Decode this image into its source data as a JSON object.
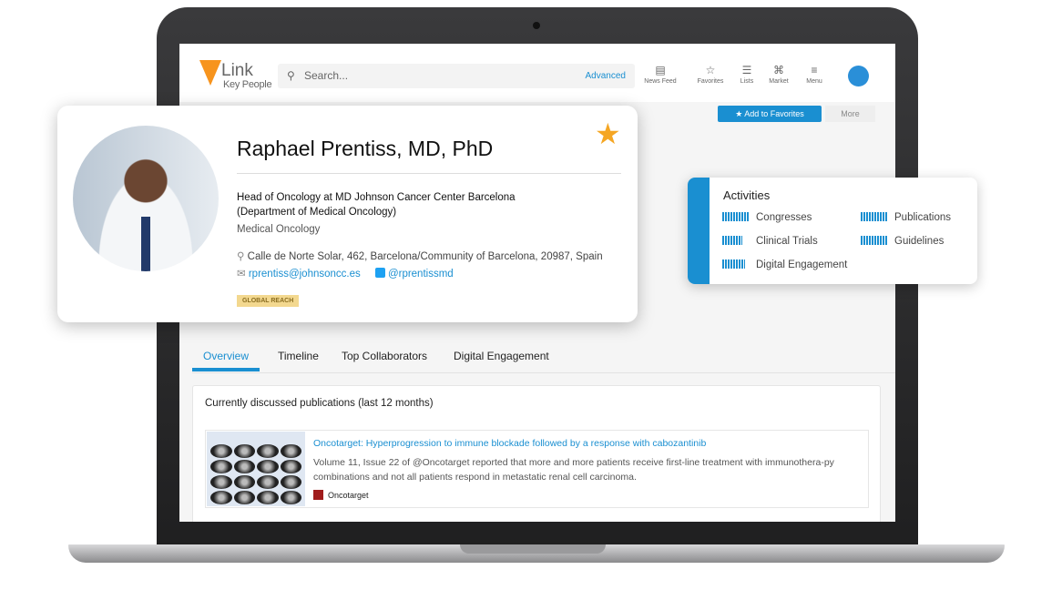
{
  "header": {
    "logo_main": "Link",
    "logo_sub": "Key People",
    "search_placeholder": "Search...",
    "advanced": "Advanced",
    "nav": [
      {
        "label": "News Feed",
        "icon": "news-feed-icon"
      },
      {
        "label": "Favorites",
        "icon": "star-outline-icon"
      },
      {
        "label": "Lists",
        "icon": "list-icon"
      },
      {
        "label": "Market",
        "icon": "market-icon"
      },
      {
        "label": "Menu",
        "icon": "menu-icon"
      }
    ]
  },
  "actions": {
    "add_favorites": "Add to Favorites",
    "more": "More"
  },
  "profile": {
    "name": "Raphael Prentiss, MD, PhD",
    "role_line1": "Head of Oncology at MD Johnson Cancer Center Barcelona",
    "role_line2": "(Department of Medical Oncology)",
    "specialty": "Medical Oncology",
    "address": "Calle de Norte Solar, 462, Barcelona/Community of Barcelona, 20987, Spain",
    "email": "rprentiss@johnsoncc.es",
    "twitter": "@rprentissmd",
    "badge": "GLOBAL REACH"
  },
  "activities": {
    "title": "Activities",
    "items": [
      "Congresses",
      "Publications",
      "Clinical Trials",
      "Guidelines",
      "Digital Engagement"
    ]
  },
  "tabs": [
    "Overview",
    "Timeline",
    "Top Collaborators",
    "Digital Engagement"
  ],
  "publications": {
    "heading": "Currently discussed publications (last 12 months)",
    "items": [
      {
        "title": "Oncotarget: Hyperprogression to immune blockade followed by a response with cabozantinib",
        "description": "Volume 11, Issue 22 of @Oncotarget reported that more and more patients receive first-line treatment with immunothera-py combinations and not all patients respond in metastatic renal cell carcinoma.",
        "source": "Oncotarget"
      }
    ]
  },
  "colors": {
    "accent": "#1a8fd1",
    "logo": "#f7941d",
    "star": "#f5a623"
  }
}
